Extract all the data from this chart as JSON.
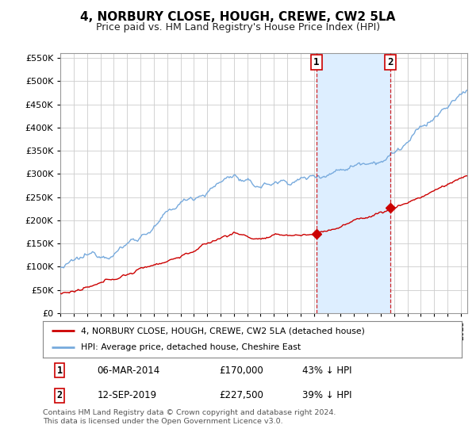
{
  "title": "4, NORBURY CLOSE, HOUGH, CREWE, CW2 5LA",
  "subtitle": "Price paid vs. HM Land Registry's House Price Index (HPI)",
  "title_fontsize": 11,
  "subtitle_fontsize": 9,
  "background_color": "#ffffff",
  "plot_bg_color": "#ffffff",
  "grid_color": "#cccccc",
  "hpi_color": "#77aadd",
  "hpi_fill_color": "#ddeeff",
  "price_color": "#cc0000",
  "marker_color": "#cc0000",
  "legend_entry1": "4, NORBURY CLOSE, HOUGH, CREWE, CW2 5LA (detached house)",
  "legend_entry2": "HPI: Average price, detached house, Cheshire East",
  "sale1_date_num": 2014.18,
  "sale1_price": 170000,
  "sale1_label": "1",
  "sale2_date_num": 2019.71,
  "sale2_price": 227500,
  "sale2_label": "2",
  "footer": "Contains HM Land Registry data © Crown copyright and database right 2024.\nThis data is licensed under the Open Government Licence v3.0.",
  "xmin": 1995.0,
  "xmax": 2025.5,
  "ymin": 0,
  "ymax": 560000
}
